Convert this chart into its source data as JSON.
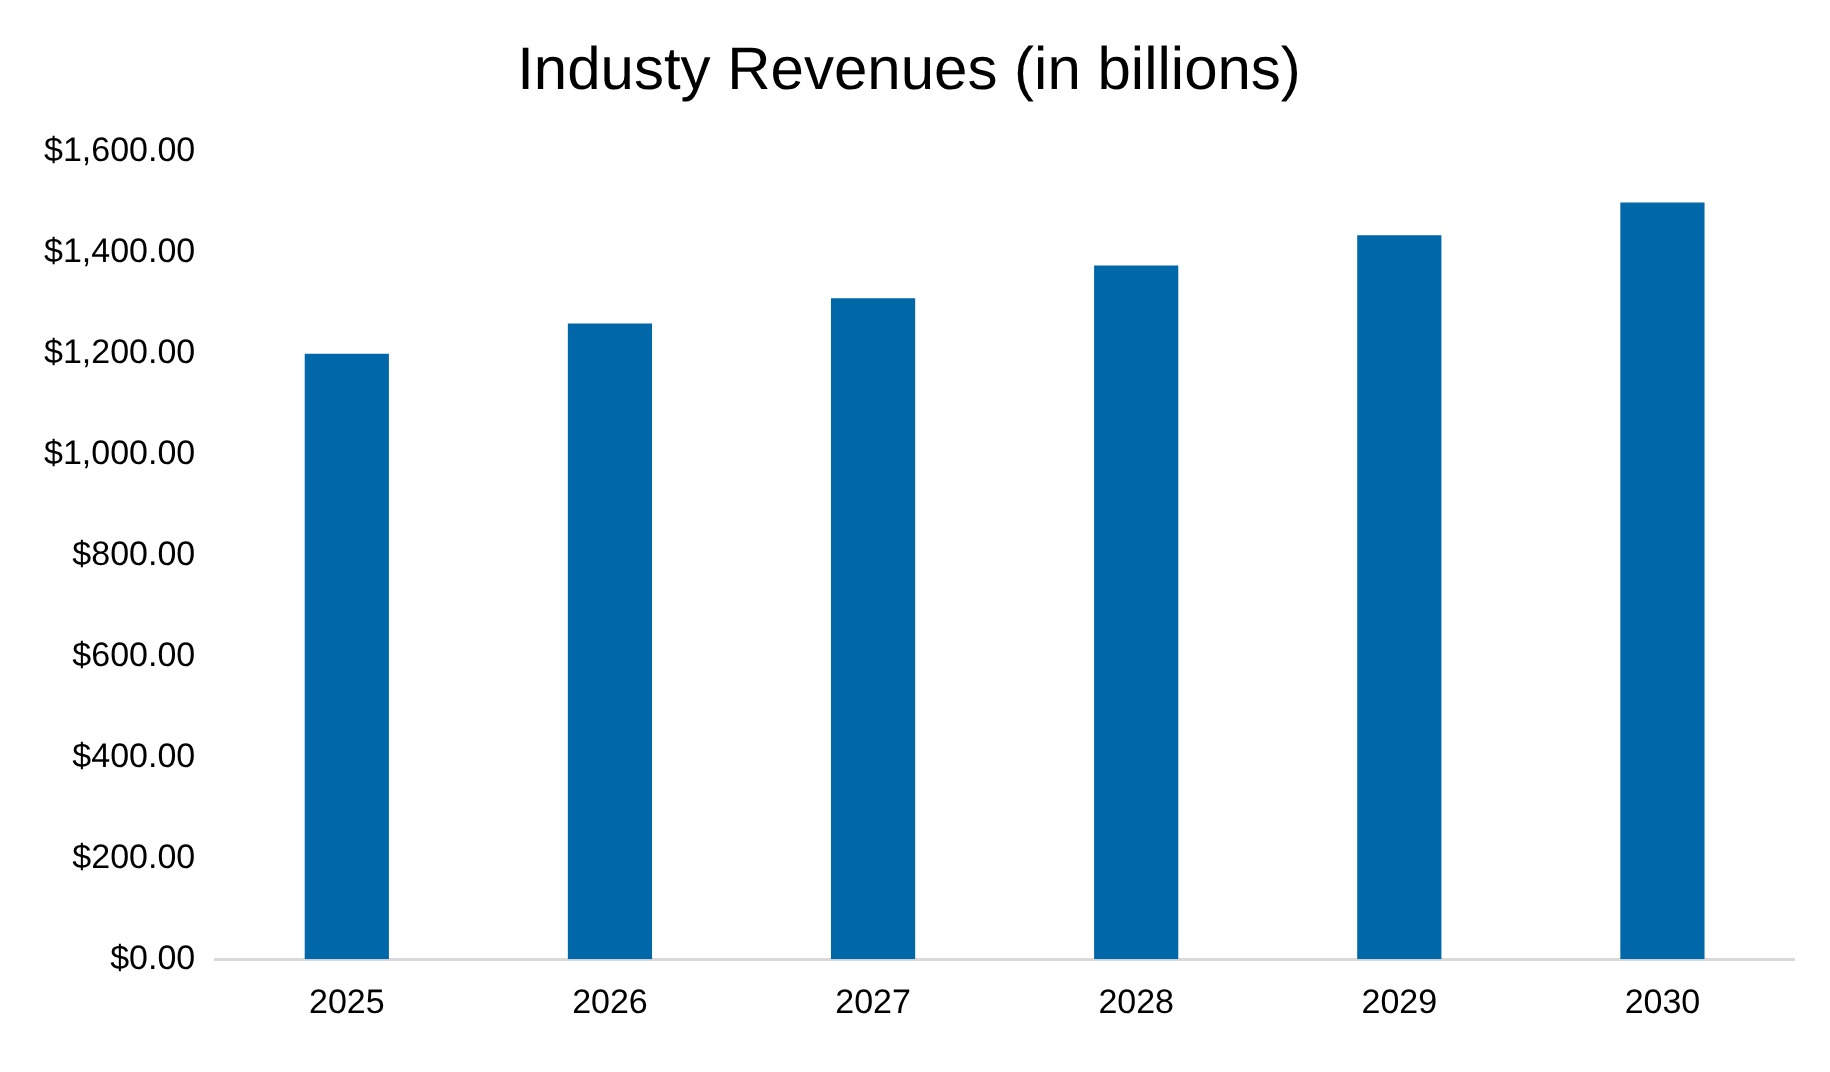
{
  "chart_data": {
    "type": "bar",
    "title": "Industy Revenues (in billions)",
    "categories": [
      "2025",
      "2026",
      "2027",
      "2028",
      "2029",
      "2030"
    ],
    "values": [
      1200,
      1260,
      1310,
      1375,
      1435,
      1500
    ],
    "color": "#0068a8",
    "ylim": [
      0,
      1600
    ],
    "yticks": [
      {
        "value": 0,
        "label": "$0.00"
      },
      {
        "value": 200,
        "label": "$200.00"
      },
      {
        "value": 400,
        "label": "$400.00"
      },
      {
        "value": 600,
        "label": "$600.00"
      },
      {
        "value": 800,
        "label": "$800.00"
      },
      {
        "value": 1000,
        "label": "$1,000.00"
      },
      {
        "value": 1200,
        "label": "$1,200.00"
      },
      {
        "value": 1400,
        "label": "$1,400.00"
      },
      {
        "value": 1600,
        "label": "$1,600.00"
      }
    ],
    "grid": false,
    "legend": false
  }
}
